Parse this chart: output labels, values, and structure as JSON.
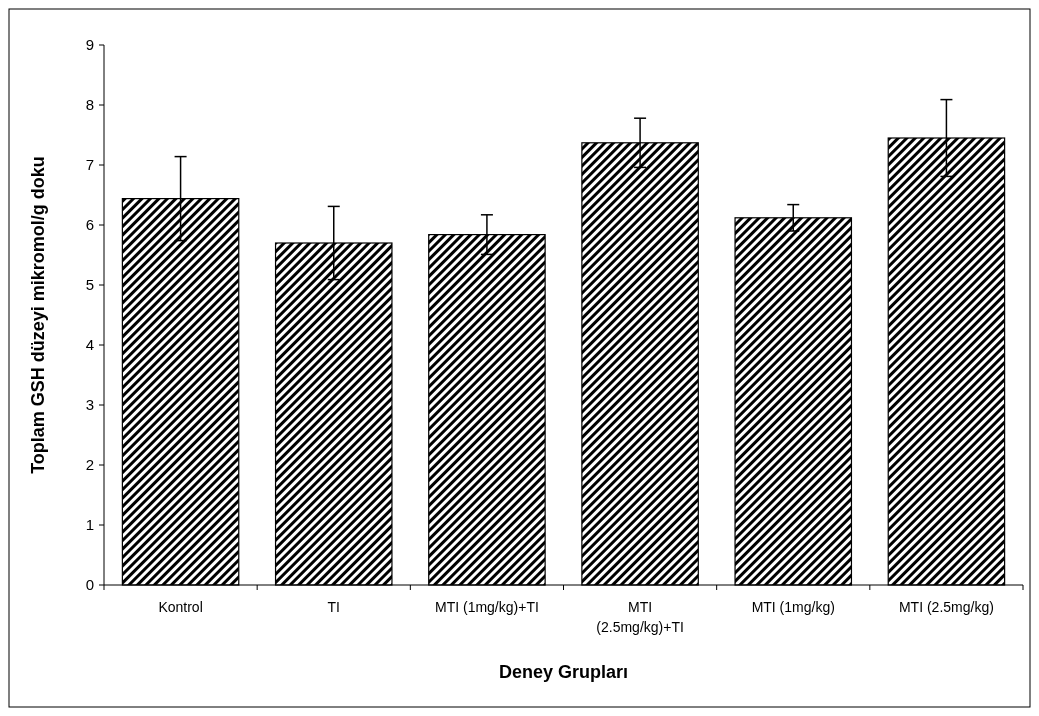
{
  "chart_data": {
    "type": "bar",
    "xlabel": "Deney Grupları",
    "ylabel": "Toplam GSH düzeyi mikromol/g doku",
    "categories": [
      "Kontrol",
      "TI",
      "MTI (1mg/kg)+TI",
      "MTI (2.5mg/kg)+TI",
      "MTI (1mg/kg)",
      "MTI (2.5mg/kg)"
    ],
    "values": [
      6.44,
      5.7,
      5.84,
      7.37,
      6.12,
      7.45
    ],
    "errors": [
      0.7,
      0.61,
      0.33,
      0.41,
      0.22,
      0.64
    ],
    "color": "#000000",
    "ylim": [
      0,
      9
    ],
    "yticks": [
      0,
      1,
      2,
      3,
      4,
      5,
      6,
      7,
      8,
      9
    ],
    "grid": false
  }
}
